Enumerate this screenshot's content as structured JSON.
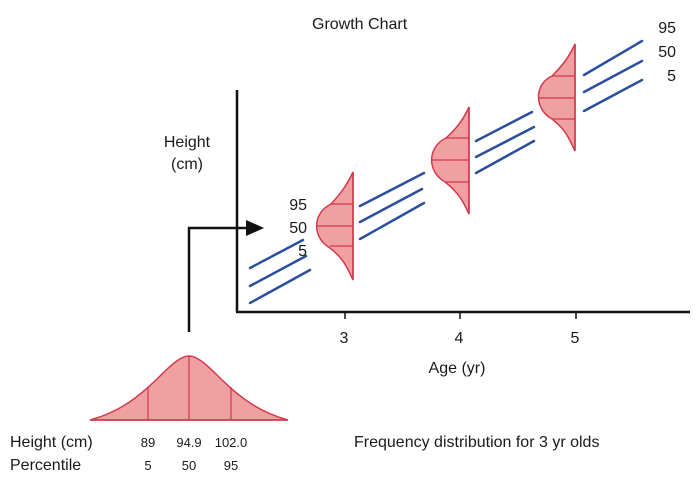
{
  "title": "Growth Chart",
  "y_axis_label": [
    "Height",
    "(cm)"
  ],
  "x_axis_label": "Age (yr)",
  "x_ticks": [
    "3",
    "4",
    "5"
  ],
  "percentile_labels_top": [
    "95",
    "50",
    "5"
  ],
  "percentile_labels_pointer": [
    "95",
    "50",
    "5"
  ],
  "dist_caption": "Frequency distribution for 3 yr olds",
  "height_row_label": "Height (cm)",
  "height_values": [
    "89",
    "94.9",
    "102.0"
  ],
  "percentile_row_label": "Percentile",
  "percentile_values": [
    "5",
    "50",
    "95"
  ],
  "colors": {
    "line": "#2b4f9e",
    "curve_fill": "#f0a0a0",
    "curve_stroke": "#d23a4e",
    "axis": "#111111"
  }
}
